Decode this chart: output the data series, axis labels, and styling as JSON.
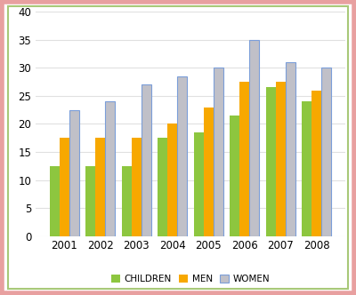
{
  "years": [
    2001,
    2002,
    2003,
    2004,
    2005,
    2006,
    2007,
    2008
  ],
  "children": [
    12.5,
    12.5,
    12.5,
    17.5,
    18.5,
    21.5,
    26.5,
    24.0
  ],
  "men": [
    17.5,
    17.5,
    17.5,
    20.0,
    23.0,
    27.5,
    27.5,
    26.0
  ],
  "women": [
    22.5,
    24.0,
    27.0,
    28.5,
    30.0,
    35.0,
    31.0,
    30.0
  ],
  "children_color": "#8DC63F",
  "men_color": "#F7A800",
  "women_color": "#C0C0C8",
  "women_edge_color": "#7B9ED9",
  "legend_labels": [
    "CHILDREN",
    "MEN",
    "WOMEN"
  ],
  "ylim": [
    0,
    40
  ],
  "yticks": [
    0,
    5,
    10,
    15,
    20,
    25,
    30,
    35,
    40
  ],
  "bar_width": 0.27,
  "background_color": "#FFFFFF",
  "plot_bg_color": "#FFFFFF",
  "outer_border_color": "#E8A0A0",
  "inner_border_color": "#A8C878",
  "grid_color": "#E0E0E0",
  "tick_label_fontsize": 8.5,
  "legend_fontsize": 7.5
}
